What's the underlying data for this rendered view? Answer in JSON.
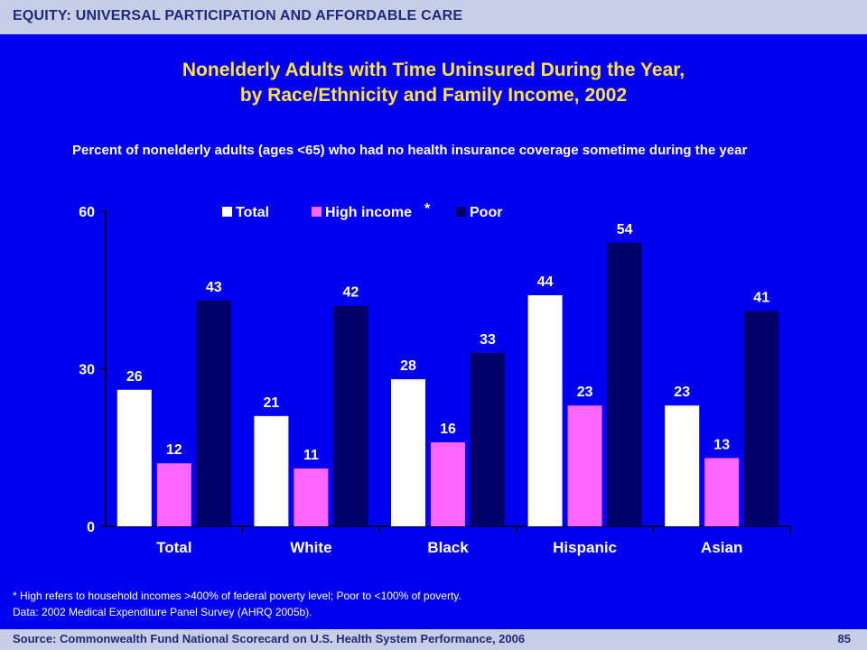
{
  "header": {
    "banner": "EQUITY: UNIVERSAL PARTICIPATION AND AFFORDABLE CARE"
  },
  "title_line1": "Nonelderly Adults with Time Uninsured During the Year,",
  "title_line2": "by Race/Ethnicity and Family Income, 2002",
  "subtitle": "Percent of nonelderly adults (ages <65) who had no health insurance coverage sometime during the year",
  "footnote_line1": "* High refers to household incomes >400% of federal poverty level; Poor to <100% of poverty.",
  "footnote_line2": "Data: 2002 Medical Expenditure Panel Survey (AHRQ 2005b).",
  "footer": {
    "source": "Source: Commonwealth Fund National Scorecard on U.S. Health System Performance, 2006",
    "page": "85"
  },
  "colors": {
    "background": "#0000EE",
    "total": "#FFFFFF",
    "high_income": "#FF66FF",
    "poor": "#000066",
    "title": "#FFE24A",
    "bar_band": "#C8CDE6"
  },
  "chart_data": {
    "type": "bar",
    "categories": [
      "Total",
      "White",
      "Black",
      "Hispanic",
      "Asian"
    ],
    "series": [
      {
        "name": "Total",
        "values": [
          26,
          21,
          28,
          44,
          23
        ],
        "color": "#FFFFFF"
      },
      {
        "name": "High income",
        "values": [
          12,
          11,
          16,
          23,
          13
        ],
        "color": "#FF66FF"
      },
      {
        "name": "Poor",
        "values": [
          43,
          42,
          33,
          54,
          41
        ],
        "color": "#000066"
      }
    ],
    "legend_marker": "*",
    "ylim": [
      0,
      60
    ],
    "yticks": [
      0,
      30,
      60
    ],
    "legend_position": "top-center",
    "grid": false
  }
}
